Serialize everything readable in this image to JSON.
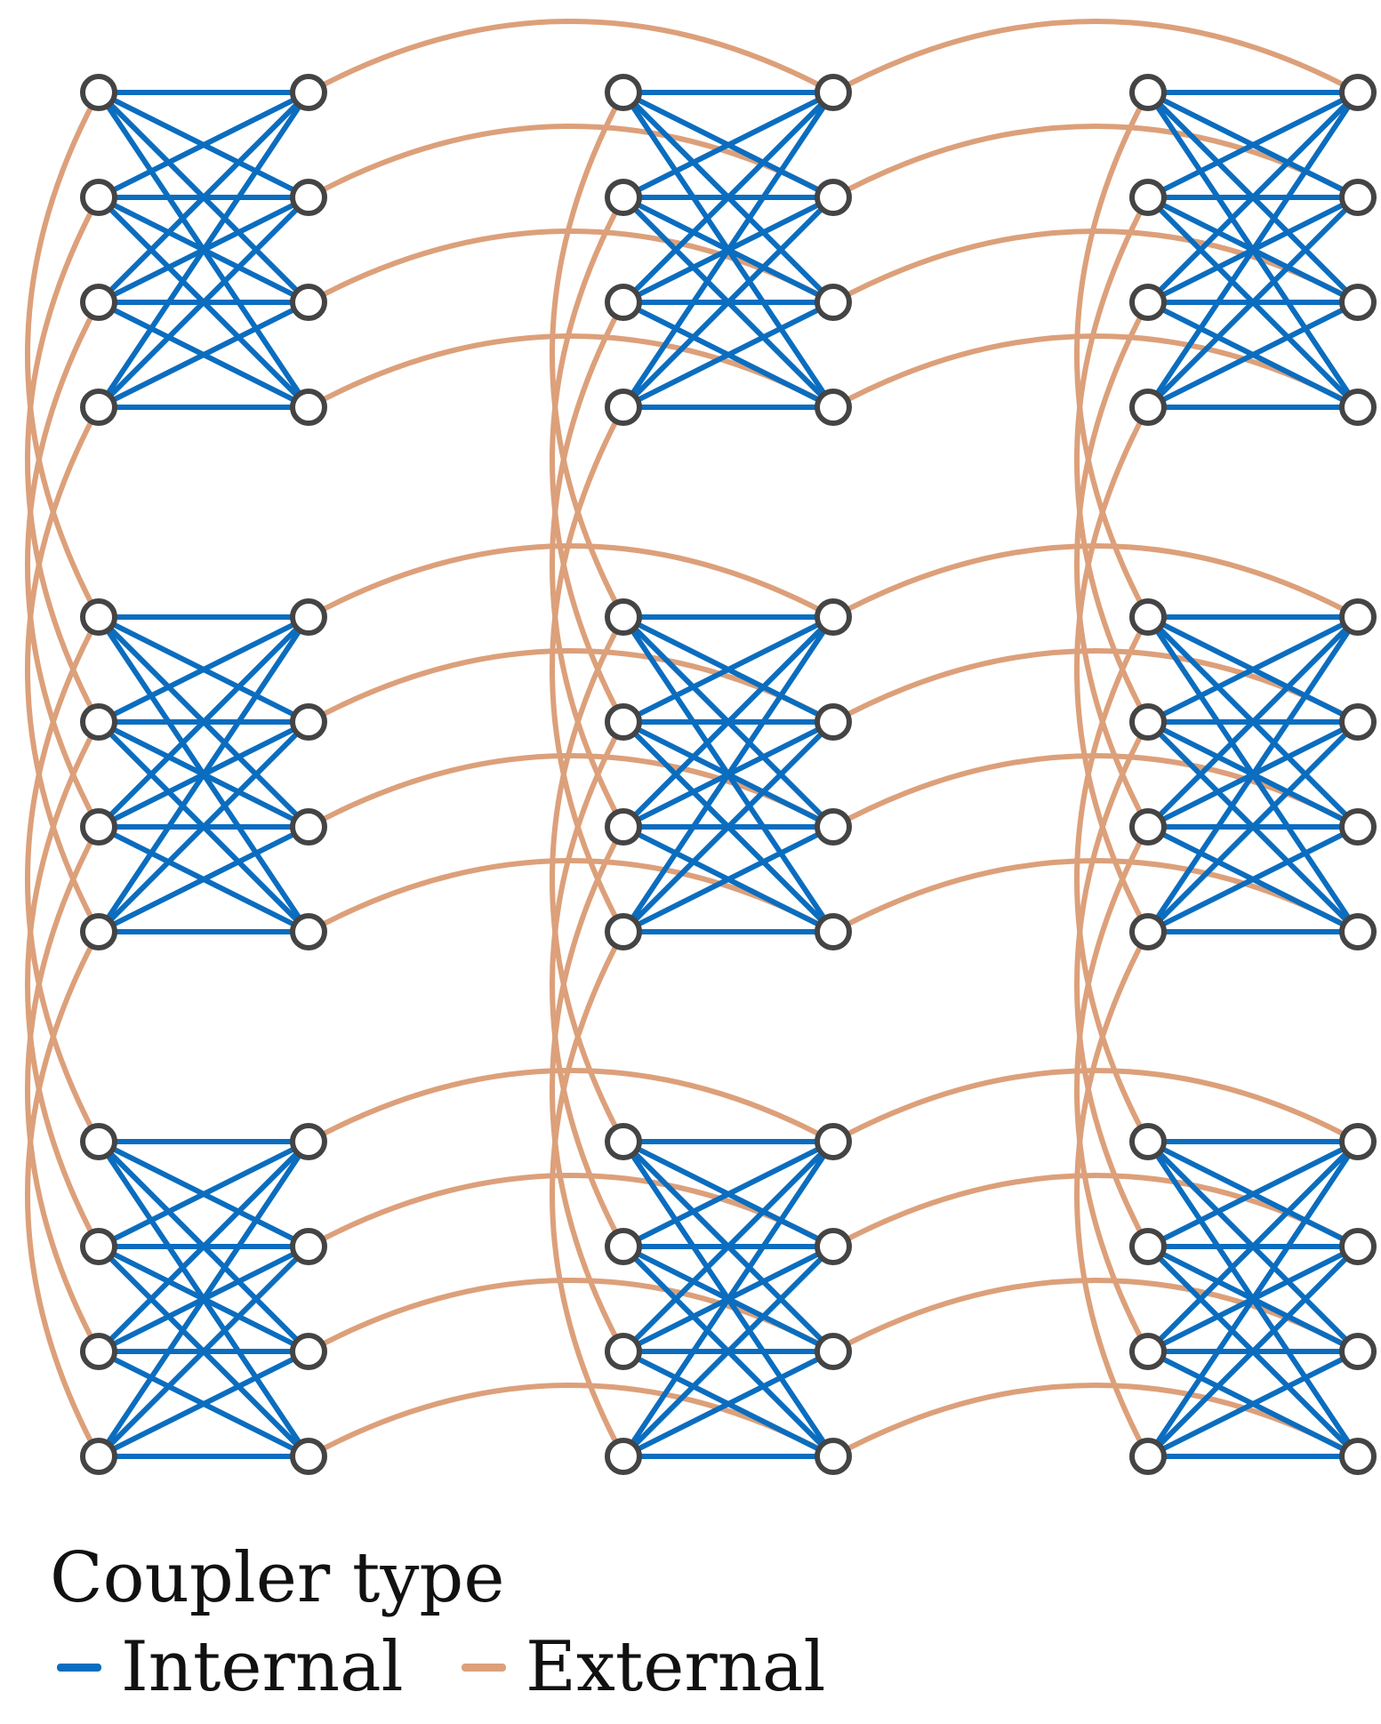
{
  "graph": {
    "unit_rows": 3,
    "unit_cols": 3,
    "qubits_per_side": 4,
    "colors": {
      "internal": "#0b6dbf",
      "external": "#dca07a",
      "node_stroke": "#444444",
      "node_fill": "#ffffff"
    }
  },
  "legend": {
    "title": "Coupler type",
    "items": [
      {
        "label": "Internal",
        "color": "#0b6dbf"
      },
      {
        "label": "External",
        "color": "#dca07a"
      }
    ]
  }
}
